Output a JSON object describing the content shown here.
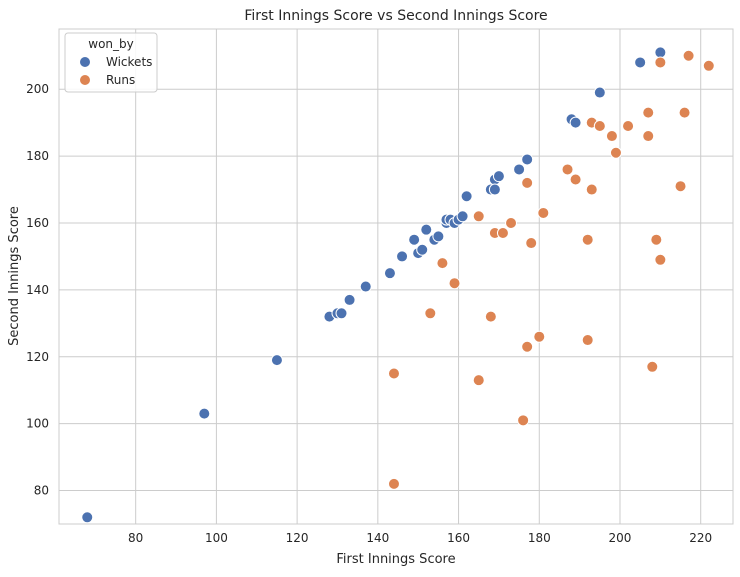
{
  "chart_data": {
    "type": "scatter",
    "title": "First Innings Score vs Second Innings Score",
    "xlabel": "First Innings Score",
    "ylabel": "Second Innings Score",
    "xlim": [
      61,
      228
    ],
    "ylim": [
      70,
      218
    ],
    "xticks": [
      80,
      100,
      120,
      140,
      160,
      180,
      200,
      220
    ],
    "yticks": [
      80,
      100,
      120,
      140,
      160,
      180,
      200
    ],
    "grid": true,
    "legend": {
      "title": "won_by",
      "placement": "top-left"
    },
    "series": [
      {
        "name": "Wickets",
        "color": "#4c72b0",
        "points": [
          [
            68,
            72
          ],
          [
            97,
            103
          ],
          [
            115,
            119
          ],
          [
            128,
            132
          ],
          [
            130,
            133
          ],
          [
            131,
            133
          ],
          [
            133,
            137
          ],
          [
            137,
            141
          ],
          [
            143,
            145
          ],
          [
            146,
            150
          ],
          [
            149,
            155
          ],
          [
            150,
            151
          ],
          [
            151,
            152
          ],
          [
            152,
            158
          ],
          [
            154,
            155
          ],
          [
            155,
            156
          ],
          [
            157,
            160
          ],
          [
            157,
            161
          ],
          [
            158,
            161
          ],
          [
            159,
            160
          ],
          [
            160,
            161
          ],
          [
            161,
            162
          ],
          [
            162,
            168
          ],
          [
            168,
            170
          ],
          [
            169,
            173
          ],
          [
            169,
            170
          ],
          [
            170,
            174
          ],
          [
            175,
            176
          ],
          [
            177,
            179
          ],
          [
            188,
            191
          ],
          [
            189,
            190
          ],
          [
            195,
            199
          ],
          [
            205,
            208
          ],
          [
            210,
            211
          ]
        ]
      },
      {
        "name": "Runs",
        "color": "#dd8452",
        "points": [
          [
            144,
            82
          ],
          [
            144,
            115
          ],
          [
            153,
            133
          ],
          [
            156,
            148
          ],
          [
            159,
            142
          ],
          [
            165,
            162
          ],
          [
            165,
            113
          ],
          [
            168,
            132
          ],
          [
            169,
            157
          ],
          [
            171,
            157
          ],
          [
            173,
            160
          ],
          [
            176,
            101
          ],
          [
            177,
            172
          ],
          [
            177,
            123
          ],
          [
            178,
            154
          ],
          [
            180,
            126
          ],
          [
            181,
            163
          ],
          [
            187,
            176
          ],
          [
            189,
            173
          ],
          [
            192,
            155
          ],
          [
            192,
            125
          ],
          [
            193,
            190
          ],
          [
            193,
            170
          ],
          [
            195,
            189
          ],
          [
            198,
            186
          ],
          [
            199,
            181
          ],
          [
            202,
            189
          ],
          [
            207,
            193
          ],
          [
            207,
            186
          ],
          [
            208,
            117
          ],
          [
            209,
            155
          ],
          [
            210,
            208
          ],
          [
            210,
            149
          ],
          [
            215,
            171
          ],
          [
            216,
            193
          ],
          [
            217,
            210
          ],
          [
            222,
            207
          ]
        ]
      }
    ]
  }
}
